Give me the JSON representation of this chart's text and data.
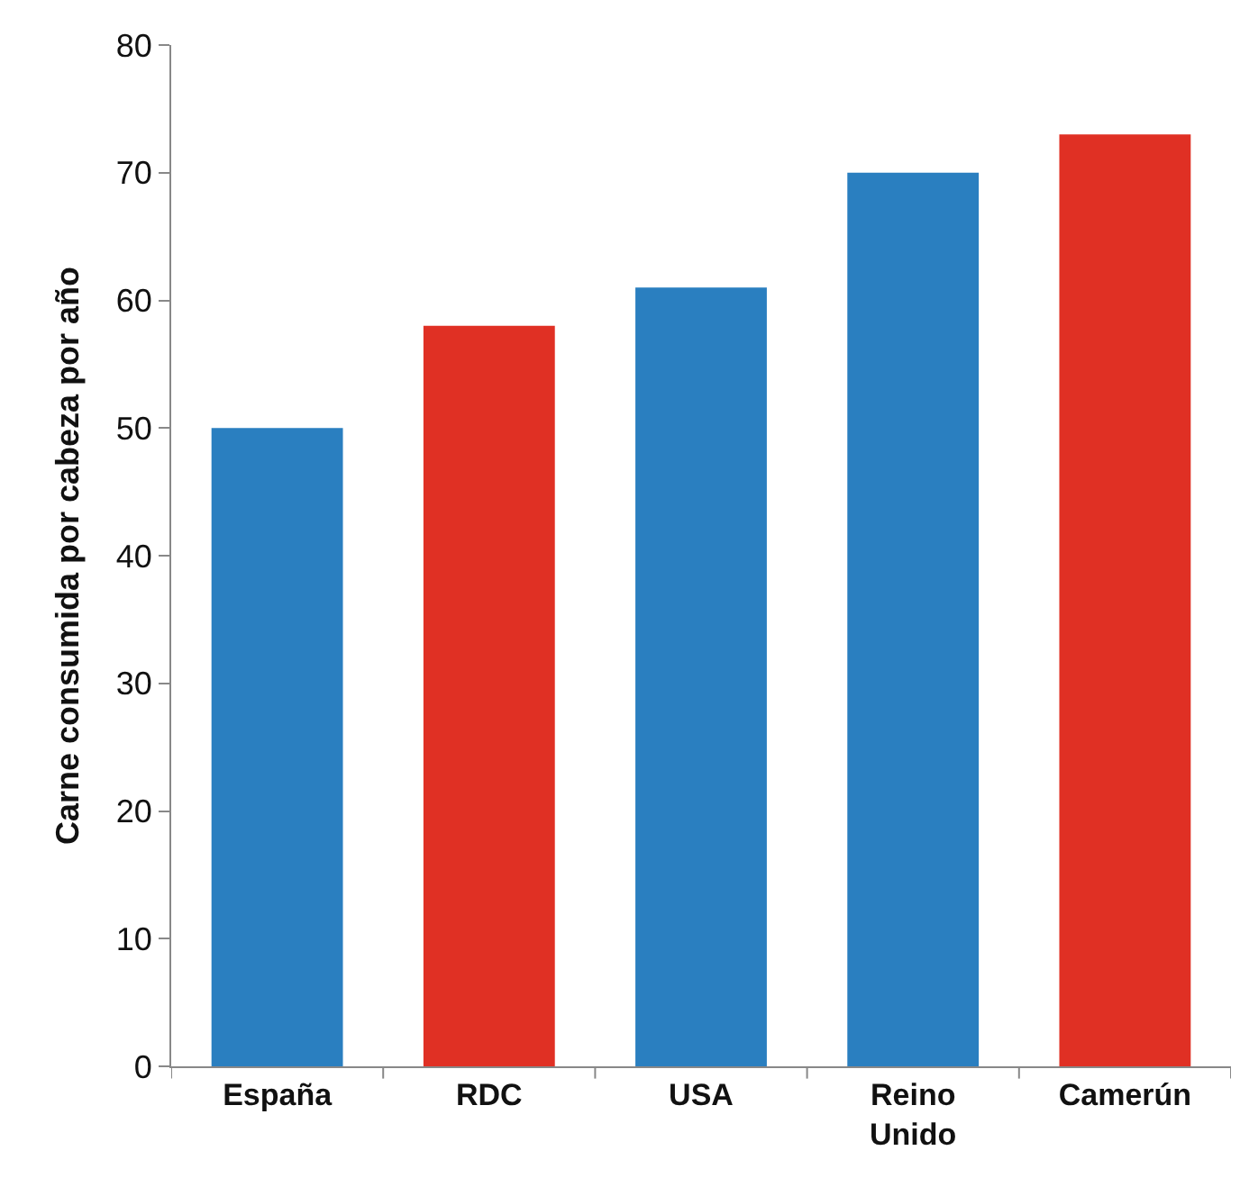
{
  "chart_data": {
    "type": "bar",
    "ylabel": "Carne consumida por cabeza por año",
    "categories": [
      "España",
      "RDC",
      "USA",
      "Reino Unido",
      "Camerún"
    ],
    "values": [
      50,
      58,
      61,
      70,
      73
    ],
    "colors": [
      "#2a7fc0",
      "#e03024",
      "#2a7fc0",
      "#2a7fc0",
      "#e03024"
    ],
    "ylim": [
      0,
      80
    ],
    "yticks": [
      0,
      10,
      20,
      30,
      40,
      50,
      60,
      70,
      80
    ]
  }
}
